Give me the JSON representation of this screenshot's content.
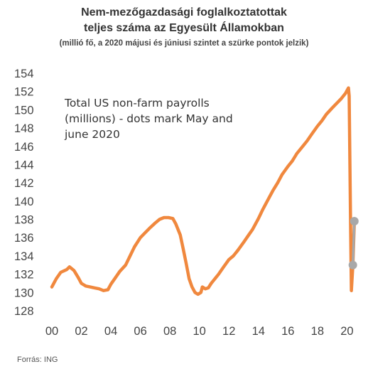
{
  "header": {
    "title_line1": "Nem-mezőgazdasági foglalkoztatottak",
    "title_line2": "teljes száma az Egyesült Államokban",
    "subtitle": "(millió fő, a 2020 májusi és júniusi szintet a szürke pontok jelzik)"
  },
  "footer": {
    "source": "Forrás: ING"
  },
  "colors": {
    "line": "#f0883e",
    "dots": "#a8a8a8",
    "text": "#444444"
  },
  "chart_data": {
    "type": "line",
    "title": "Nem-mezőgazdasági foglalkoztatottak teljes száma az Egyesült Államokban",
    "annotation": [
      "Total US non-farm payrolls",
      "(millions) - dots mark May and",
      "june 2020"
    ],
    "xlabel": "",
    "ylabel": "",
    "ylim": [
      128,
      154
    ],
    "yticks": [
      128,
      130,
      132,
      134,
      136,
      138,
      140,
      142,
      144,
      146,
      148,
      150,
      152,
      154
    ],
    "xlim": [
      2000,
      2020.8
    ],
    "xticks": [
      2000,
      2002,
      2004,
      2006,
      2008,
      2010,
      2012,
      2014,
      2016,
      2018,
      2020
    ],
    "xtick_labels": [
      "00",
      "02",
      "04",
      "06",
      "08",
      "10",
      "12",
      "14",
      "16",
      "18",
      "20"
    ],
    "grid": false,
    "series": [
      {
        "x": [
          2000.0,
          2000.3,
          2000.6,
          2001.0,
          2001.2,
          2001.5,
          2001.8,
          2002.0,
          2002.3,
          2002.6,
          2002.9,
          2003.2,
          2003.5,
          2003.8,
          2004.0,
          2004.3,
          2004.6,
          2005.0,
          2005.3,
          2005.6,
          2006.0,
          2006.3,
          2006.6,
          2007.0,
          2007.3,
          2007.6,
          2007.9,
          2008.2,
          2008.4,
          2008.7,
          2008.9,
          2009.1,
          2009.3,
          2009.5,
          2009.7,
          2009.9,
          2010.1,
          2010.2,
          2010.4,
          2010.6,
          2010.8,
          2011.0,
          2011.3,
          2011.6,
          2012.0,
          2012.3,
          2012.6,
          2013.0,
          2013.3,
          2013.6,
          2014.0,
          2014.3,
          2014.6,
          2015.0,
          2015.3,
          2015.6,
          2016.0,
          2016.3,
          2016.6,
          2017.0,
          2017.3,
          2017.6,
          2018.0,
          2018.3,
          2018.6,
          2019.0,
          2019.3,
          2019.6,
          2019.9,
          2020.1,
          2020.15,
          2020.25,
          2020.3,
          2020.4,
          2020.5
        ],
        "values": [
          130.6,
          131.5,
          132.2,
          132.5,
          132.8,
          132.4,
          131.6,
          131.0,
          130.7,
          130.6,
          130.5,
          130.4,
          130.2,
          130.3,
          130.9,
          131.6,
          132.3,
          133.0,
          134.0,
          135.0,
          136.0,
          136.5,
          137.0,
          137.6,
          138.0,
          138.2,
          138.2,
          138.1,
          137.5,
          136.3,
          134.8,
          133.2,
          131.5,
          130.6,
          130.0,
          129.8,
          130.0,
          130.6,
          130.4,
          130.5,
          131.0,
          131.4,
          132.0,
          132.7,
          133.6,
          134.0,
          134.6,
          135.5,
          136.2,
          136.9,
          138.1,
          139.1,
          140.0,
          141.2,
          142.0,
          142.9,
          143.8,
          144.4,
          145.2,
          146.0,
          146.6,
          147.3,
          148.2,
          148.8,
          149.5,
          150.2,
          150.7,
          151.2,
          151.8,
          152.4,
          151.5,
          136.5,
          130.2,
          133.0,
          137.8
        ]
      }
    ],
    "markers": [
      {
        "label": "May 2020",
        "x": 2020.4,
        "y": 133.0
      },
      {
        "label": "June 2020",
        "x": 2020.5,
        "y": 137.8
      }
    ]
  }
}
